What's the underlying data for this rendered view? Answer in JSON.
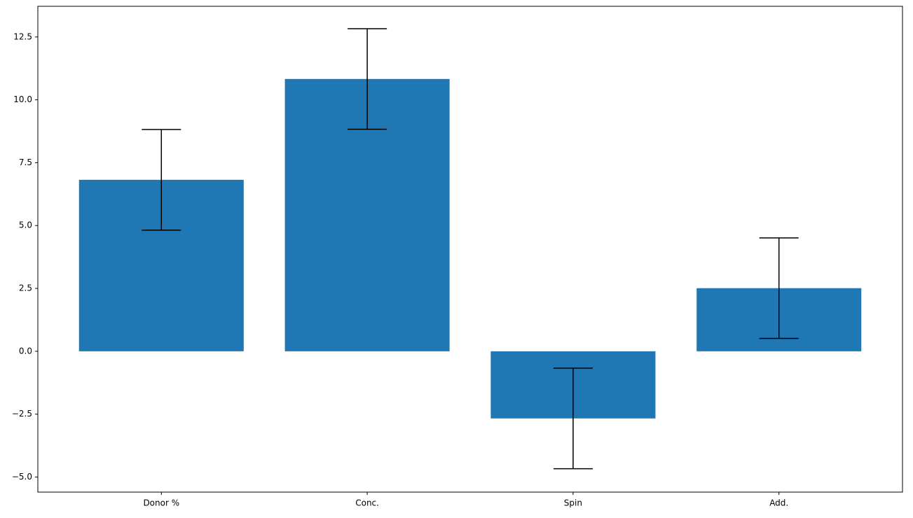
{
  "chart_data": {
    "type": "bar",
    "categories": [
      "Donor %",
      "Conc.",
      "Spin",
      "Add."
    ],
    "values": [
      6.82,
      10.83,
      -2.67,
      2.51
    ],
    "errors": [
      2.0,
      2.0,
      2.0,
      2.0
    ],
    "color": "#1f77b4",
    "ylim": [
      -5.6,
      13.72
    ],
    "yticks": [
      {
        "value": -5,
        "label": "−5.0"
      },
      {
        "value": -2.5,
        "label": "−2.5"
      },
      {
        "value": 0,
        "label": "0.0"
      },
      2.5,
      {
        "value": 5,
        "label": "5.0"
      },
      7.5,
      {
        "value": 10,
        "label": "10.0"
      },
      12.5
    ],
    "grid": false
  }
}
